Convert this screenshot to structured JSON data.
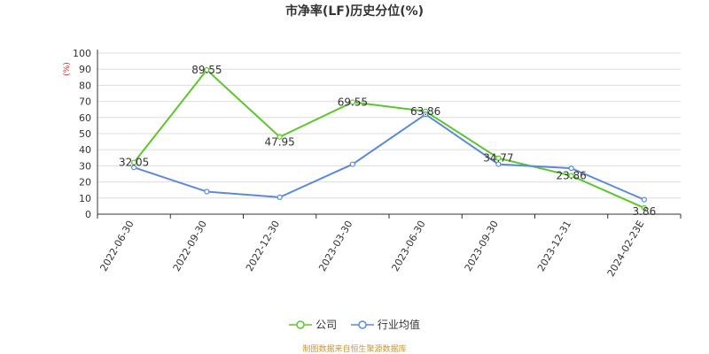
{
  "colors": {
    "company": "#5cc62a",
    "industry": "#5b8ad8",
    "ylabel": "#e02020",
    "source": "#c8963a"
  },
  "legend": {
    "company": "公司",
    "industry": "行业均值"
  },
  "source": "制图数据来自恒生聚源数据库",
  "chart_data": {
    "type": "line",
    "title": "市净率(LF)历史分位(%)",
    "ylabel": "(%)",
    "xlabel": "",
    "ylim": [
      0,
      100
    ],
    "yticks": [
      0,
      10,
      20,
      30,
      40,
      50,
      60,
      70,
      80,
      90,
      100
    ],
    "grid": true,
    "legend_position": "bottom",
    "categories": [
      "2022-06-30",
      "2022-09-30",
      "2022-12-30",
      "2023-03-30",
      "2023-06-30",
      "2023-09-30",
      "2023-12-31",
      "2024-02-23E"
    ],
    "series": [
      {
        "name": "公司",
        "values": [
          32.05,
          89.55,
          47.95,
          69.55,
          63.86,
          34.77,
          23.86,
          3.86
        ],
        "labels": [
          "32.05",
          "89.55",
          "47.95",
          "69.55",
          "63.86",
          "34.77",
          "23.86",
          "3.86"
        ]
      },
      {
        "name": "行业均值",
        "values": [
          29,
          14,
          10.5,
          31,
          62,
          31,
          28.5,
          9
        ]
      }
    ]
  }
}
